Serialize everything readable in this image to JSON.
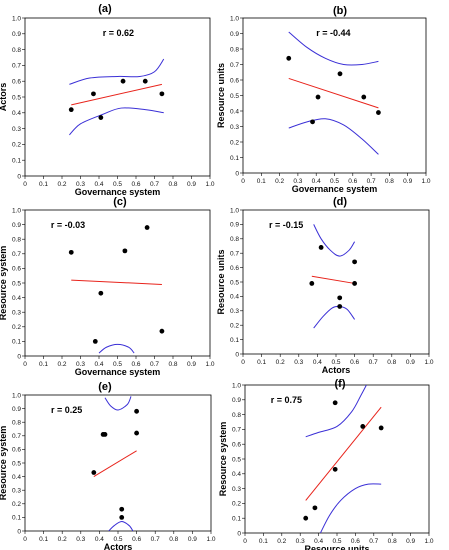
{
  "chart_data": [
    {
      "type": "scatter",
      "panel_label": "(a)",
      "r_text": "r = 0.62",
      "xlabel": "Governance system",
      "ylabel": "Actors",
      "xlim": [
        0,
        1
      ],
      "ylim": [
        0,
        1
      ],
      "x_ticks": [
        "0",
        "0.1",
        "0.2",
        "0.3",
        "0.4",
        "0.5",
        "0.6",
        "0.7",
        "0.8",
        "0.9",
        "1.0"
      ],
      "y_ticks": [
        "0",
        "0.1",
        "0.2",
        "0.3",
        "0.4",
        "0.5",
        "0.6",
        "0.7",
        "0.8",
        "0.9",
        "1.0"
      ],
      "points": [
        [
          0.25,
          0.42
        ],
        [
          0.37,
          0.52
        ],
        [
          0.41,
          0.37
        ],
        [
          0.53,
          0.6
        ],
        [
          0.65,
          0.6
        ],
        [
          0.74,
          0.52
        ]
      ],
      "fit_line": [
        [
          0.25,
          0.45
        ],
        [
          0.74,
          0.58
        ]
      ],
      "ci_upper": [
        [
          0.24,
          0.58
        ],
        [
          0.35,
          0.62
        ],
        [
          0.5,
          0.63
        ],
        [
          0.62,
          0.63
        ],
        [
          0.7,
          0.66
        ],
        [
          0.75,
          0.74
        ]
      ],
      "ci_lower": [
        [
          0.24,
          0.26
        ],
        [
          0.3,
          0.33
        ],
        [
          0.42,
          0.39
        ],
        [
          0.52,
          0.43
        ],
        [
          0.65,
          0.42
        ],
        [
          0.75,
          0.4
        ]
      ],
      "colors": {
        "points": "#000000",
        "fit": "#e8231b",
        "ci": "#3a2fd6"
      }
    },
    {
      "type": "scatter",
      "panel_label": "(b)",
      "r_text": "r = -0.44",
      "xlabel": "Governance system",
      "ylabel": "Resource units",
      "xlim": [
        0,
        1
      ],
      "ylim": [
        0,
        1
      ],
      "x_ticks": [
        "0",
        "0.1",
        "0.2",
        "0.3",
        "0.4",
        "0.5",
        "0.6",
        "0.7",
        "0.8",
        "0.9",
        "1.0"
      ],
      "y_ticks": [
        "0",
        "0.1",
        "0.2",
        "0.3",
        "0.4",
        "0.5",
        "0.6",
        "0.7",
        "0.8",
        "0.9",
        "1.0"
      ],
      "points": [
        [
          0.25,
          0.74
        ],
        [
          0.38,
          0.33
        ],
        [
          0.41,
          0.49
        ],
        [
          0.53,
          0.64
        ],
        [
          0.66,
          0.49
        ],
        [
          0.74,
          0.39
        ]
      ],
      "fit_line": [
        [
          0.25,
          0.61
        ],
        [
          0.74,
          0.42
        ]
      ],
      "ci_upper": [
        [
          0.25,
          0.91
        ],
        [
          0.35,
          0.81
        ],
        [
          0.45,
          0.74
        ],
        [
          0.55,
          0.7
        ],
        [
          0.65,
          0.7
        ],
        [
          0.74,
          0.72
        ]
      ],
      "ci_lower": [
        [
          0.25,
          0.29
        ],
        [
          0.35,
          0.33
        ],
        [
          0.45,
          0.35
        ],
        [
          0.55,
          0.31
        ],
        [
          0.65,
          0.22
        ],
        [
          0.74,
          0.12
        ]
      ],
      "colors": {
        "points": "#000000",
        "fit": "#e8231b",
        "ci": "#3a2fd6"
      }
    },
    {
      "type": "scatter",
      "panel_label": "(c)",
      "r_text": "r = -0.03",
      "xlabel": "Governance system",
      "ylabel": "Resource system",
      "xlim": [
        0,
        1
      ],
      "ylim": [
        0,
        1
      ],
      "x_ticks": [
        "0",
        "0.1",
        "0.2",
        "0.3",
        "0.4",
        "0.5",
        "0.6",
        "0.7",
        "0.8",
        "0.9",
        "1.0"
      ],
      "y_ticks": [
        "0",
        "0.1",
        "0.2",
        "0.3",
        "0.4",
        "0.5",
        "0.6",
        "0.7",
        "0.8",
        "0.9",
        "1.0"
      ],
      "points": [
        [
          0.25,
          0.71
        ],
        [
          0.38,
          0.1
        ],
        [
          0.41,
          0.43
        ],
        [
          0.54,
          0.72
        ],
        [
          0.66,
          0.88
        ],
        [
          0.74,
          0.17
        ]
      ],
      "fit_line": [
        [
          0.25,
          0.52
        ],
        [
          0.74,
          0.49
        ]
      ],
      "ci_upper": [
        [
          0.4,
          0.02
        ],
        [
          0.44,
          0.06
        ],
        [
          0.5,
          0.08
        ],
        [
          0.56,
          0.06
        ],
        [
          0.59,
          0.02
        ]
      ],
      "ci_lower": [],
      "colors": {
        "points": "#000000",
        "fit": "#e8231b",
        "ci": "#3a2fd6"
      }
    },
    {
      "type": "scatter",
      "panel_label": "(d)",
      "r_text": "r = -0.15",
      "xlabel": "Actors",
      "ylabel": "Resource units",
      "xlim": [
        0,
        1
      ],
      "ylim": [
        0,
        1
      ],
      "x_ticks": [
        "0",
        "0.1",
        "0.2",
        "0.3",
        "0.4",
        "0.5",
        "0.6",
        "0.7",
        "0.8",
        "0.9",
        "1.0"
      ],
      "y_ticks": [
        "0",
        "0.1",
        "0.2",
        "0.3",
        "0.4",
        "0.5",
        "0.6",
        "0.7",
        "0.8",
        "0.9",
        "1.0"
      ],
      "points": [
        [
          0.37,
          0.49
        ],
        [
          0.42,
          0.74
        ],
        [
          0.52,
          0.39
        ],
        [
          0.52,
          0.33
        ],
        [
          0.6,
          0.64
        ],
        [
          0.6,
          0.49
        ]
      ],
      "fit_line": [
        [
          0.37,
          0.54
        ],
        [
          0.6,
          0.49
        ]
      ],
      "ci_upper": [
        [
          0.38,
          0.9
        ],
        [
          0.42,
          0.8
        ],
        [
          0.47,
          0.72
        ],
        [
          0.52,
          0.68
        ],
        [
          0.57,
          0.72
        ],
        [
          0.6,
          0.78
        ]
      ],
      "ci_lower": [
        [
          0.38,
          0.18
        ],
        [
          0.43,
          0.26
        ],
        [
          0.48,
          0.32
        ],
        [
          0.52,
          0.33
        ],
        [
          0.56,
          0.31
        ],
        [
          0.6,
          0.24
        ]
      ],
      "colors": {
        "points": "#000000",
        "fit": "#e8231b",
        "ci": "#3a2fd6"
      }
    },
    {
      "type": "scatter",
      "panel_label": "(e)",
      "r_text": "r = 0.25",
      "xlabel": "Actors",
      "ylabel": "Resource system",
      "xlim": [
        0,
        1
      ],
      "ylim": [
        0,
        1
      ],
      "x_ticks": [
        "0",
        "0.1",
        "0.2",
        "0.3",
        "0.4",
        "0.5",
        "0.6",
        "0.7",
        "0.8",
        "0.9",
        "1.0"
      ],
      "y_ticks": [
        "0",
        "0.1",
        "0.2",
        "0.3",
        "0.4",
        "0.5",
        "0.6",
        "0.7",
        "0.8",
        "0.9",
        "1.0"
      ],
      "points": [
        [
          0.37,
          0.43
        ],
        [
          0.42,
          0.71
        ],
        [
          0.43,
          0.71
        ],
        [
          0.52,
          0.16
        ],
        [
          0.52,
          0.1
        ],
        [
          0.6,
          0.88
        ],
        [
          0.6,
          0.72
        ]
      ],
      "fit_line": [
        [
          0.37,
          0.4
        ],
        [
          0.6,
          0.59
        ]
      ],
      "ci_upper": [
        [
          0.43,
          0.98
        ],
        [
          0.46,
          0.92
        ],
        [
          0.5,
          0.89
        ],
        [
          0.55,
          0.93
        ],
        [
          0.57,
          0.99
        ]
      ],
      "ci_lower": [
        [
          0.45,
          0.0
        ],
        [
          0.48,
          0.04
        ],
        [
          0.52,
          0.07
        ],
        [
          0.56,
          0.04
        ],
        [
          0.58,
          0.0
        ]
      ],
      "colors": {
        "points": "#000000",
        "fit": "#e8231b",
        "ci": "#3a2fd6"
      }
    },
    {
      "type": "scatter",
      "panel_label": "(f)",
      "r_text": "r = 0.75",
      "xlabel": "Resource units",
      "ylabel": "Resource system",
      "xlim": [
        0,
        1
      ],
      "ylim": [
        0,
        1
      ],
      "x_ticks": [
        "0",
        "0.1",
        "0.2",
        "0.3",
        "0.4",
        "0.5",
        "0.6",
        "0.7",
        "0.8",
        "0.9",
        "1.0"
      ],
      "y_ticks": [
        "0",
        "0.1",
        "0.2",
        "0.3",
        "0.4",
        "0.5",
        "0.6",
        "0.7",
        "0.8",
        "0.9",
        "1.0"
      ],
      "points": [
        [
          0.33,
          0.1
        ],
        [
          0.38,
          0.17
        ],
        [
          0.49,
          0.88
        ],
        [
          0.49,
          0.43
        ],
        [
          0.64,
          0.72
        ],
        [
          0.74,
          0.71
        ]
      ],
      "fit_line": [
        [
          0.33,
          0.22
        ],
        [
          0.74,
          0.85
        ]
      ],
      "ci_upper": [
        [
          0.33,
          0.65
        ],
        [
          0.4,
          0.68
        ],
        [
          0.5,
          0.72
        ],
        [
          0.58,
          0.82
        ],
        [
          0.63,
          0.93
        ],
        [
          0.66,
          1.0
        ]
      ],
      "ci_lower": [
        [
          0.41,
          0.0
        ],
        [
          0.46,
          0.12
        ],
        [
          0.52,
          0.22
        ],
        [
          0.6,
          0.3
        ],
        [
          0.67,
          0.33
        ],
        [
          0.74,
          0.33
        ]
      ],
      "colors": {
        "points": "#000000",
        "fit": "#e8231b",
        "ci": "#3a2fd6"
      }
    }
  ]
}
